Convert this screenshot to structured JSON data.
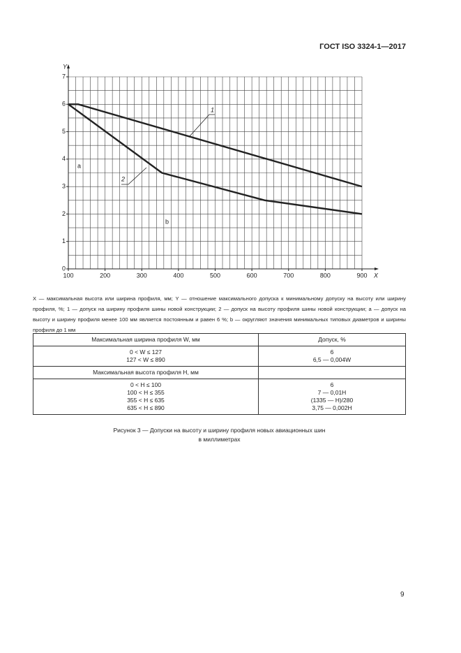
{
  "header": {
    "title": "ГОСТ ISO 3324-1—2017"
  },
  "chart_data": {
    "type": "line",
    "xlabel": "X",
    "ylabel": "Y",
    "xlim": [
      100,
      900
    ],
    "ylim": [
      0,
      7
    ],
    "xticks": [
      100,
      200,
      300,
      400,
      500,
      600,
      700,
      800,
      900
    ],
    "yticks": [
      0,
      1,
      2,
      3,
      4,
      5,
      6,
      7
    ],
    "grid": true,
    "grid_x_step": 20,
    "grid_y_step": 0.5,
    "series": [
      {
        "name": "1",
        "color": "#222222",
        "x": [
          100,
          127,
          900
        ],
        "values": [
          6,
          6,
          3
        ]
      },
      {
        "name": "2",
        "color": "#222222",
        "x": [
          100,
          355,
          635,
          900
        ],
        "values": [
          6,
          3.5,
          2.5,
          2
        ]
      }
    ],
    "annotations": [
      "a",
      "b"
    ]
  },
  "legend_text": "X — максимальная высота или ширина профиля, мм; Y — отношение максимального допуска к минимальному допуску на высоту или ширину профиля, %; 1 — допуск на ширину профиля шины новой конструкции; 2 — допуск на высоту профиля шины новой конструкции; a — допуск на высоту и ширину профиля менее 100 мм является постоянным и равен 6 %; b — округляют значения минимальных типовых диаметров и ширины профиля до 1 мм",
  "table": {
    "rows": [
      [
        [
          "Максимальная ширина профиля W, мм"
        ],
        [
          "Допуск, %"
        ]
      ],
      [
        [
          "0 < W ≤ 127",
          "127 < W ≤ 890"
        ],
        [
          "6",
          "6,5 — 0,004W"
        ]
      ],
      [
        [
          "Максимальная высота профиля H, мм"
        ],
        []
      ],
      [
        [
          "0 < H ≤ 100",
          "100 < H ≤ 355",
          "355 < H ≤ 635",
          "635 < H ≤ 890"
        ],
        [
          "6",
          "7 — 0,01H",
          "(1335 — H)/280",
          "3,75 — 0,002H"
        ]
      ]
    ]
  },
  "caption": [
    "Рисунок 3 — Допуски на высоту и ширину профиля новых авиационных шин",
    "в миллиметрах"
  ],
  "page_number": "9"
}
